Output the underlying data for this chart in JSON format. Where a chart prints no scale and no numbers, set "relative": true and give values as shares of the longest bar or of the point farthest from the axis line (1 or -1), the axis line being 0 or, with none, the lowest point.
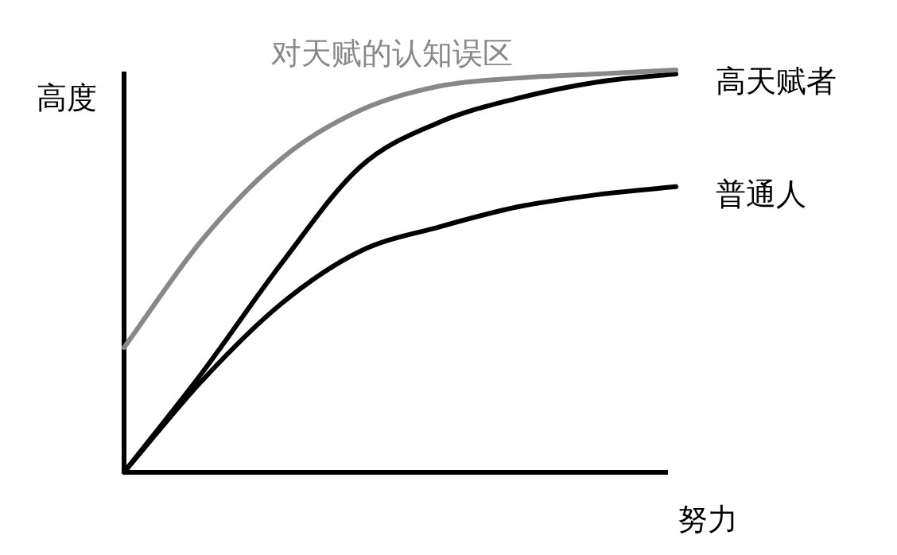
{
  "chart_data": {
    "type": "line",
    "relative": true,
    "xlabel": "努力",
    "ylabel": "高度",
    "categories": [
      null,
      null,
      null,
      null,
      null,
      null,
      null,
      null
    ],
    "series": [
      {
        "name": "高天赋者",
        "color": "#000000",
        "values": [
          0,
          0.25,
          0.52,
          0.76,
          0.87,
          0.93,
          0.97,
          0.99
        ]
      },
      {
        "name": "普通人",
        "color": "#000000",
        "values": [
          0,
          0.23,
          0.42,
          0.55,
          0.61,
          0.66,
          0.69,
          0.71
        ]
      },
      {
        "name": "对天赋的认知误区",
        "color": "#888888",
        "values": [
          0.31,
          0.58,
          0.78,
          0.9,
          0.96,
          0.98,
          0.99,
          1
        ]
      }
    ]
  }
}
